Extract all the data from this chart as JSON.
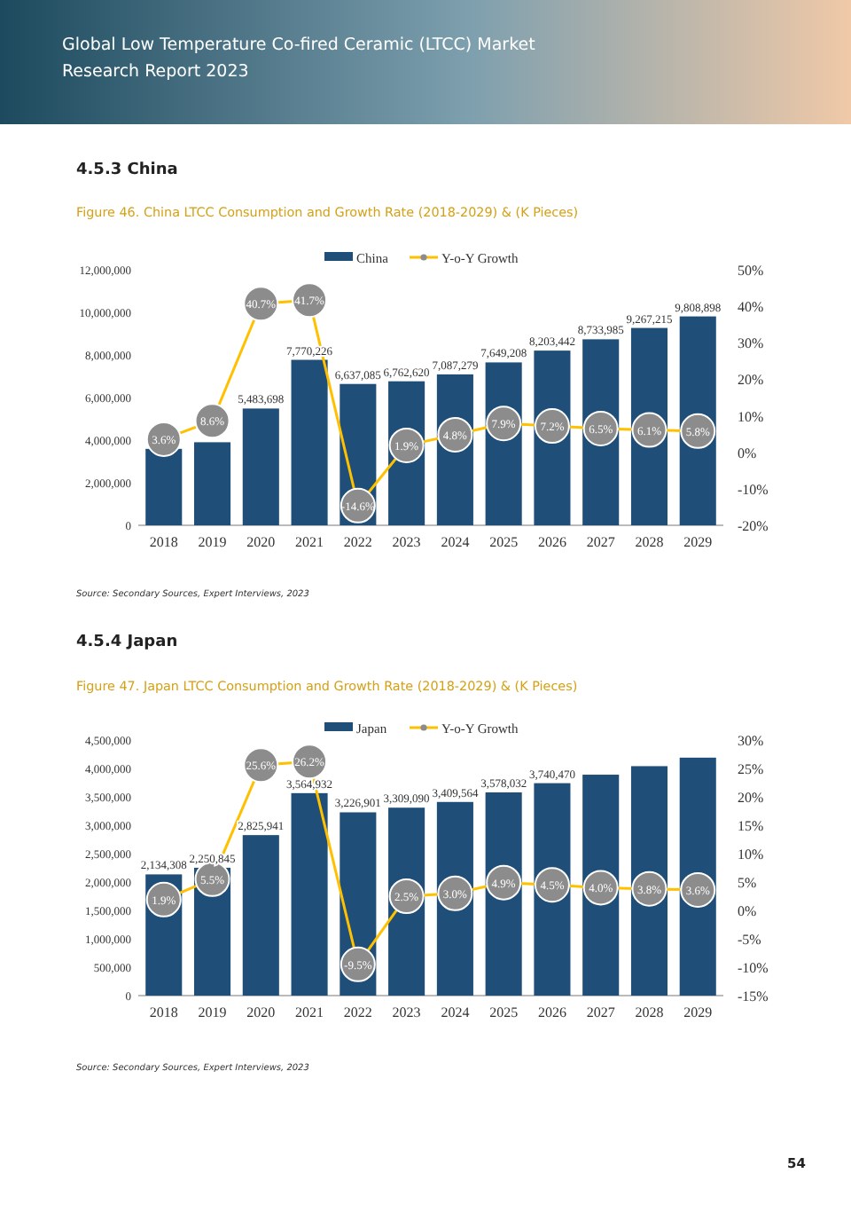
{
  "chart_data": [
    {
      "type": "bar",
      "title": "Figure 46.   China LTCC Consumption and Growth Rate (2018-2029) & (K Pieces)",
      "annotations": [
        "Global Low Temperature Co-fired Ceramic (LTCC) Market Research Report 2023",
        "4.5.3  China",
        "Source: Secondary Sources, Expert Interviews, 2023"
      ],
      "categories": [
        "2018",
        "2019",
        "2020",
        "2021",
        "2022",
        "2023",
        "2024",
        "2025",
        "2026",
        "2027",
        "2028",
        "2029"
      ],
      "series": [
        {
          "name": "China",
          "color": "#1f4e79",
          "values": [
            3590000,
            3900000,
            5483698,
            7770226,
            6637085,
            6762620,
            7087279,
            7649208,
            8203442,
            8733985,
            9267215,
            9808898
          ],
          "value_labels": [
            null,
            null,
            "5,483,698",
            "7,770,226",
            "6,637,085",
            "6,762,620",
            "7,087,279",
            "7,649,208",
            "8,203,442",
            "8,733,985",
            "9,267,215",
            "9,808,898"
          ]
        },
        {
          "name": "Y-o-Y Growth",
          "type": "line",
          "axis": "y2",
          "color": "#ffc000",
          "marker": "circle",
          "values": [
            3.6,
            8.6,
            40.7,
            41.7,
            -14.6,
            1.9,
            4.8,
            7.9,
            7.2,
            6.5,
            6.1,
            5.8
          ],
          "value_labels": [
            "3.6%",
            "8.6%",
            "40.7%",
            "41.7%",
            "-14.6%",
            "1.9%",
            "4.8%",
            "7.9%",
            "7.2%",
            "6.5%",
            "6.1%",
            "5.8%"
          ]
        }
      ],
      "legend": "top",
      "grid": false,
      "ylim": [
        0,
        12000000
      ],
      "yticks": [
        {
          "value": 0,
          "label": "0"
        },
        {
          "value": 2000000,
          "label": "2,000,000"
        },
        {
          "value": 4000000,
          "label": "4,000,000"
        },
        {
          "value": 6000000,
          "label": "6,000,000"
        },
        {
          "value": 8000000,
          "label": "8,000,000"
        },
        {
          "value": 10000000,
          "label": "10,000,000"
        },
        {
          "value": 12000000,
          "label": "12,000,000"
        }
      ],
      "y2lim": [
        -20,
        50
      ],
      "y2ticks": [
        {
          "value": -20,
          "label": "-20%"
        },
        {
          "value": -10,
          "label": "-10%"
        },
        {
          "value": 0,
          "label": "0%"
        },
        {
          "value": 10,
          "label": "10%"
        },
        {
          "value": 20,
          "label": "20%"
        },
        {
          "value": 30,
          "label": "30%"
        },
        {
          "value": 40,
          "label": "40%"
        },
        {
          "value": 50,
          "label": "50%"
        }
      ]
    },
    {
      "type": "bar",
      "title": "Figure 47.   Japan LTCC Consumption and Growth Rate (2018-2029) & (K Pieces)",
      "annotations": [
        "4.5.4  Japan",
        "Source: Secondary Sources, Expert Interviews, 2023",
        "54"
      ],
      "categories": [
        "2018",
        "2019",
        "2020",
        "2021",
        "2022",
        "2023",
        "2024",
        "2025",
        "2026",
        "2027",
        "2028",
        "2029"
      ],
      "series": [
        {
          "name": "Japan",
          "color": "#1f4e79",
          "values": [
            2134308,
            2250845,
            2825941,
            3564932,
            3226901,
            3309090,
            3409564,
            3578032,
            3740470,
            3890000,
            4040000,
            4190000
          ],
          "value_labels": [
            "2,134,308",
            "2,250,845",
            "2,825,941",
            "3,564,932",
            "3,226,901",
            "3,309,090",
            "3,409,564",
            "3,578,032",
            "3,740,470",
            null,
            null,
            null
          ]
        },
        {
          "name": "Y-o-Y Growth",
          "type": "line",
          "axis": "y2",
          "color": "#ffc000",
          "marker": "circle",
          "values": [
            1.9,
            5.5,
            25.6,
            26.2,
            -9.5,
            2.5,
            3.0,
            4.9,
            4.5,
            4.0,
            3.8,
            3.6
          ],
          "value_labels": [
            "1.9%",
            "5.5%",
            "25.6%",
            "26.2%",
            "-9.5%",
            "2.5%",
            "3.0%",
            "4.9%",
            "4.5%",
            "4.0%",
            "3.8%",
            "3.6%"
          ]
        }
      ],
      "legend": "top",
      "grid": false,
      "ylim": [
        0,
        4500000
      ],
      "yticks": [
        {
          "value": 0,
          "label": "0"
        },
        {
          "value": 500000,
          "label": "500,000"
        },
        {
          "value": 1000000,
          "label": "1,000,000"
        },
        {
          "value": 1500000,
          "label": "1,500,000"
        },
        {
          "value": 2000000,
          "label": "2,000,000"
        },
        {
          "value": 2500000,
          "label": "2,500,000"
        },
        {
          "value": 3000000,
          "label": "3,000,000"
        },
        {
          "value": 3500000,
          "label": "3,500,000"
        },
        {
          "value": 4000000,
          "label": "4,000,000"
        },
        {
          "value": 4500000,
          "label": "4,500,000"
        }
      ],
      "y2lim": [
        -15,
        30
      ],
      "y2ticks": [
        {
          "value": -15,
          "label": "-15%"
        },
        {
          "value": -10,
          "label": "-10%"
        },
        {
          "value": -5,
          "label": "-5%"
        },
        {
          "value": 0,
          "label": "0%"
        },
        {
          "value": 5,
          "label": "5%"
        },
        {
          "value": 10,
          "label": "10%"
        },
        {
          "value": 15,
          "label": "15%"
        },
        {
          "value": 20,
          "label": "20%"
        },
        {
          "value": 25,
          "label": "25%"
        },
        {
          "value": 30,
          "label": "30%"
        }
      ]
    }
  ]
}
